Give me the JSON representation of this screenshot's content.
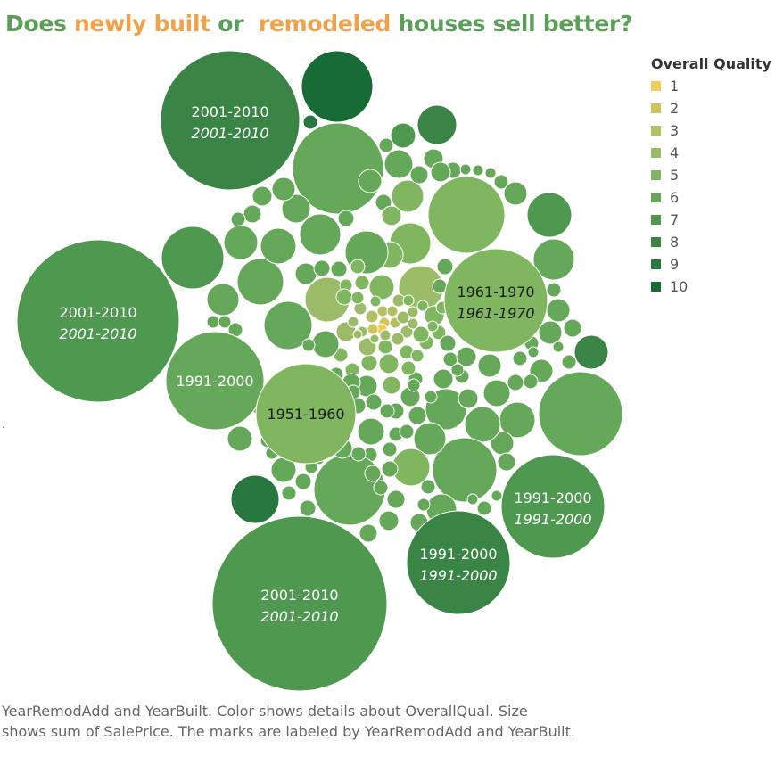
{
  "title": {
    "parts": [
      {
        "text": "Does ",
        "color": "#5a9e57"
      },
      {
        "text": "newly built",
        "color": "#f0a24a"
      },
      {
        "text": " or  ",
        "color": "#5a9e57"
      },
      {
        "text": "remodeled",
        "color": "#f0a24a"
      },
      {
        "text": " houses sell better?",
        "color": "#5a9e57"
      }
    ]
  },
  "legend": {
    "title": "Overall Quality",
    "items": [
      {
        "label": "1",
        "color": "#f0cf55"
      },
      {
        "label": "2",
        "color": "#cfc55c"
      },
      {
        "label": "3",
        "color": "#b5c065"
      },
      {
        "label": "4",
        "color": "#9cbb68"
      },
      {
        "label": "5",
        "color": "#81b661"
      },
      {
        "label": "6",
        "color": "#66a85a"
      },
      {
        "label": "7",
        "color": "#4f9850"
      },
      {
        "label": "8",
        "color": "#3a8546"
      },
      {
        "label": "9",
        "color": "#287640"
      },
      {
        "label": "10",
        "color": "#166c34"
      }
    ]
  },
  "caption": {
    "line1": "YearRemodAdd and YearBuilt.  Color shows details about OverallQual.  Size",
    "line2": "shows sum of SalePrice.  The marks are labeled by YearRemodAdd and YearBuilt."
  },
  "stray_mark": ".",
  "chart_data": {
    "type": "packed-bubble",
    "color_field": "Overall Quality",
    "size_field": "sum of SalePrice",
    "label_fields": [
      "YearRemodAdd",
      "YearBuilt"
    ],
    "labeled_marks": [
      {
        "remodel": "2001-2010",
        "built": "2001-2010",
        "quality": 8
      },
      {
        "remodel": "2001-2010",
        "built": "2001-2010",
        "quality": 7
      },
      {
        "remodel": "2001-2010",
        "built": "2001-2010",
        "quality": 7
      },
      {
        "remodel": "1991-2000",
        "built": "",
        "quality": 6
      },
      {
        "remodel": "1951-1960",
        "built": "",
        "quality": 5
      },
      {
        "remodel": "1961-1970",
        "built": "1961-1970",
        "quality": 5
      },
      {
        "remodel": "1991-2000",
        "built": "1991-2000",
        "quality": 7
      },
      {
        "remodel": "1991-2000",
        "built": "1991-2000",
        "quality": 8
      }
    ]
  }
}
